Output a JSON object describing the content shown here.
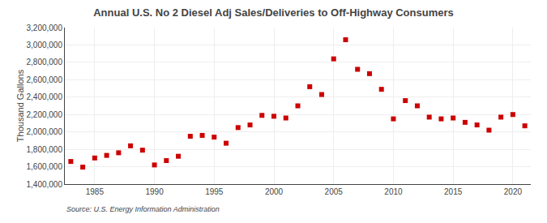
{
  "chart_data": {
    "type": "scatter",
    "title": "Annual U.S. No 2 Diesel Adj Sales/Deliveries to Off-Highway Consumers",
    "y_label": "Thousand Gallons",
    "annotations": [
      "Source: U.S. Energy Information Administration"
    ],
    "x": [
      1983,
      1984,
      1985,
      1986,
      1987,
      1988,
      1989,
      1990,
      1991,
      1992,
      1993,
      1994,
      1995,
      1996,
      1997,
      1998,
      1999,
      2000,
      2001,
      2002,
      2003,
      2004,
      2005,
      2006,
      2007,
      2008,
      2009,
      2010,
      2011,
      2012,
      2013,
      2014,
      2015,
      2016,
      2017,
      2018,
      2019,
      2020,
      2021
    ],
    "values": [
      1660000,
      1595000,
      1700000,
      1730000,
      1760000,
      1840000,
      1790000,
      1620000,
      1670000,
      1720000,
      1950000,
      1960000,
      1940000,
      1870000,
      2050000,
      2080000,
      2190000,
      2180000,
      2160000,
      2300000,
      2520000,
      2430000,
      2840000,
      3060000,
      2720000,
      2670000,
      2490000,
      2150000,
      2360000,
      2300000,
      2170000,
      2150000,
      2160000,
      2110000,
      2080000,
      2020000,
      2170000,
      2200000,
      2070000
    ],
    "color": "#cc0000",
    "marker": "square",
    "xlim": [
      1982.5,
      2021.5
    ],
    "xticks": [
      1985,
      1990,
      1995,
      2000,
      2005,
      2010,
      2015,
      2020
    ],
    "ylim": [
      1400000,
      3200000
    ],
    "yticks": [
      {
        "value": 1400000,
        "label": "1,400,000"
      },
      {
        "value": 1600000,
        "label": "1,600,000"
      },
      {
        "value": 1800000,
        "label": "1,800,000"
      },
      {
        "value": 2000000,
        "label": "2,000,000"
      },
      {
        "value": 2200000,
        "label": "2,200,000"
      },
      {
        "value": 2400000,
        "label": "2,400,000"
      },
      {
        "value": 2600000,
        "label": "2,600,000"
      },
      {
        "value": 2800000,
        "label": "2,800,000"
      },
      {
        "value": 3000000,
        "label": "3,000,000"
      },
      {
        "value": 3200000,
        "label": "3,200,000"
      }
    ],
    "grid": true
  }
}
